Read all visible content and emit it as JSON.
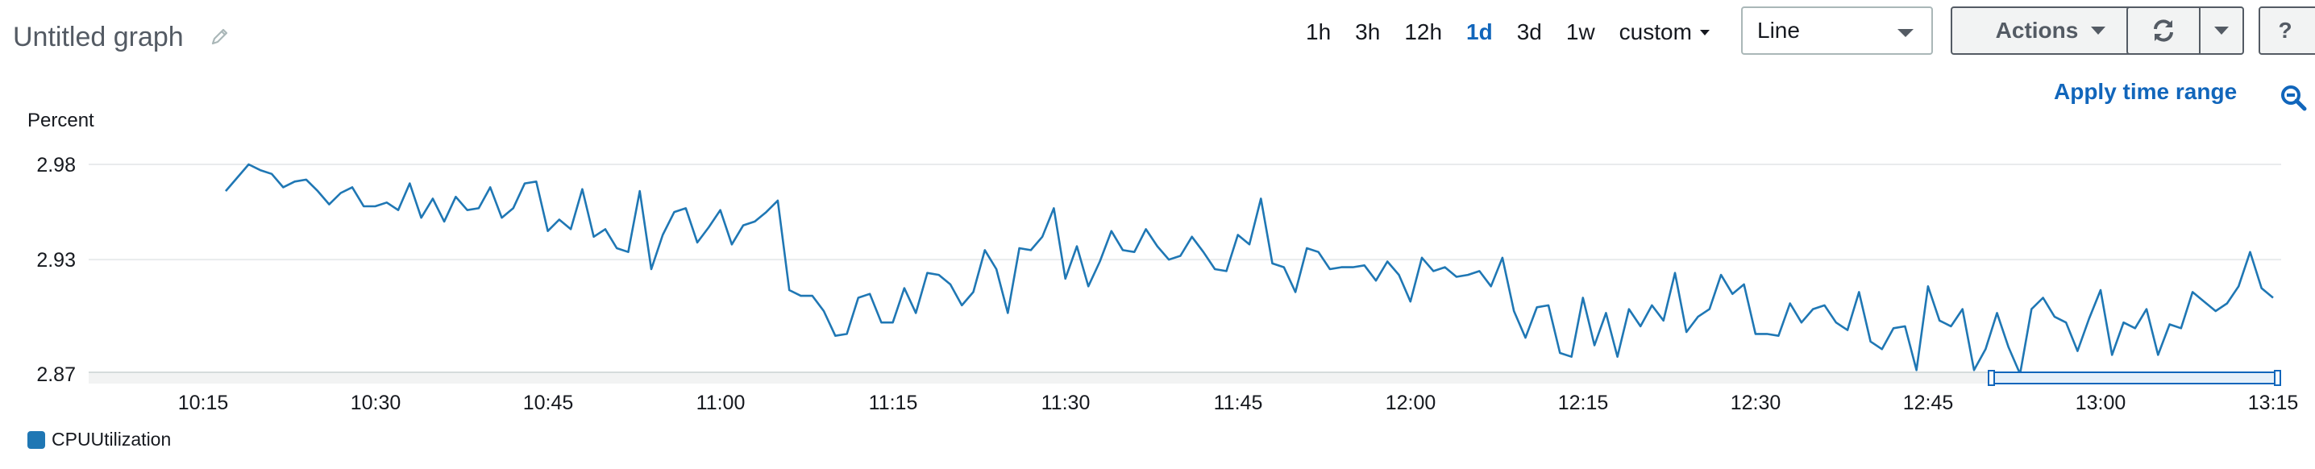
{
  "header": {
    "title": "Untitled graph",
    "edit_icon": "pencil-icon"
  },
  "time_ranges": {
    "items": [
      "1h",
      "3h",
      "12h",
      "1d",
      "3d",
      "1w"
    ],
    "active": "1d",
    "custom_label": "custom"
  },
  "chart_type_select": {
    "value": "Line"
  },
  "toolbar": {
    "actions_label": "Actions",
    "refresh_icon": "refresh-icon",
    "help_label": "?"
  },
  "apply_time_range_label": "Apply time range",
  "zoom_icon": "zoom-out-icon",
  "colors": {
    "series": "#1f77b4",
    "accent": "#1166bb"
  },
  "chart_data": {
    "type": "line",
    "ylabel": "Percent",
    "ylim": [
      2.87,
      2.98
    ],
    "yticks": [
      "2.98",
      "2.93",
      "2.87"
    ],
    "ytick_values": [
      2.98,
      2.93,
      2.87
    ],
    "xticks": [
      "10:15",
      "10:30",
      "10:45",
      "11:00",
      "11:15",
      "11:30",
      "11:45",
      "12:00",
      "12:15",
      "12:30",
      "12:45",
      "13:00",
      "13:15"
    ],
    "x_start": "10:15",
    "x_end": "13:15",
    "grid": true,
    "legend_position": "bottom-left",
    "series": [
      {
        "name": "CPUUtilization",
        "values": [
          2.966,
          2.973,
          2.98,
          2.977,
          2.975,
          2.968,
          2.971,
          2.972,
          2.966,
          2.959,
          2.965,
          2.968,
          2.958,
          2.958,
          2.96,
          2.956,
          2.97,
          2.952,
          2.962,
          2.95,
          2.963,
          2.956,
          2.957,
          2.968,
          2.952,
          2.957,
          2.97,
          2.971,
          2.945,
          2.951,
          2.946,
          2.967,
          2.942,
          2.946,
          2.936,
          2.934,
          2.966,
          2.925,
          2.943,
          2.955,
          2.957,
          2.939,
          2.947,
          2.956,
          2.938,
          2.948,
          2.95,
          2.955,
          2.961,
          2.914,
          2.911,
          2.911,
          2.903,
          2.89,
          2.891,
          2.91,
          2.912,
          2.897,
          2.897,
          2.915,
          2.902,
          2.923,
          2.922,
          2.917,
          2.906,
          2.913,
          2.935,
          2.925,
          2.902,
          2.936,
          2.935,
          2.942,
          2.957,
          2.92,
          2.937,
          2.916,
          2.929,
          2.945,
          2.935,
          2.934,
          2.946,
          2.937,
          2.93,
          2.932,
          2.942,
          2.934,
          2.925,
          2.924,
          2.943,
          2.938,
          2.962,
          2.928,
          2.926,
          2.913,
          2.936,
          2.934,
          2.925,
          2.926,
          2.926,
          2.927,
          2.919,
          2.929,
          2.922,
          2.908,
          2.931,
          2.924,
          2.926,
          2.921,
          2.922,
          2.924,
          2.916,
          2.931,
          2.903,
          2.889,
          2.905,
          2.906,
          2.881,
          2.879,
          2.91,
          2.885,
          2.902,
          2.879,
          2.904,
          2.895,
          2.906,
          2.898,
          2.923,
          2.892,
          2.9,
          2.904,
          2.922,
          2.912,
          2.917,
          2.891,
          2.891,
          2.89,
          2.907,
          2.897,
          2.904,
          2.906,
          2.897,
          2.893,
          2.913,
          2.887,
          2.883,
          2.894,
          2.895,
          2.872,
          2.916,
          2.898,
          2.895,
          2.904,
          2.872,
          2.883,
          2.902,
          2.884,
          2.87,
          2.904,
          2.91,
          2.9,
          2.897,
          2.882,
          2.899,
          2.914,
          2.88,
          2.897,
          2.894,
          2.904,
          2.88,
          2.896,
          2.894,
          2.913,
          2.908,
          2.903,
          2.907,
          2.916,
          2.934,
          2.915,
          2.91
        ]
      }
    ]
  }
}
